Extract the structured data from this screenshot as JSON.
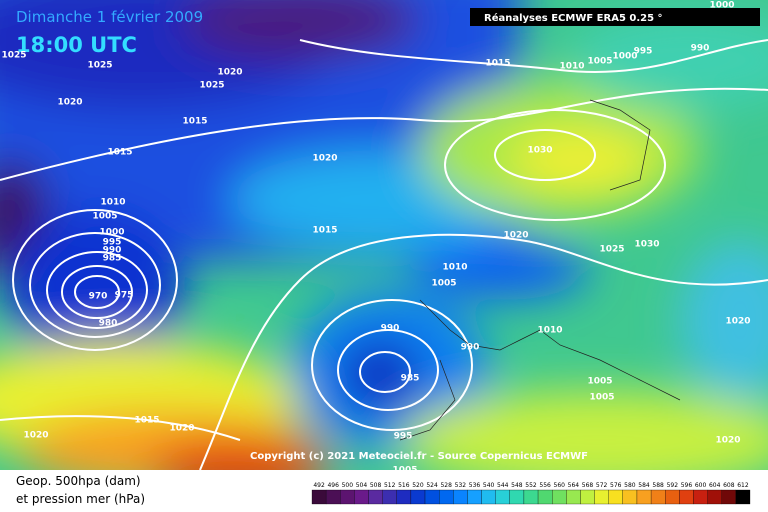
{
  "header": {
    "title": "Dimanche 1 février 2009",
    "time": "18:00 UTC",
    "source": "Réanalyses ECMWF ERA5 0.25 °"
  },
  "copyright": "Copyright (c) 2021 Meteociel.fr - Source Copernicus ECMWF",
  "legend": {
    "line1": "Geop. 500hpa (dam)",
    "line2": "et pression mer (hPa)"
  },
  "scale": {
    "labels": [
      492,
      496,
      500,
      504,
      508,
      512,
      516,
      520,
      524,
      528,
      532,
      536,
      540,
      544,
      548,
      552,
      556,
      560,
      564,
      568,
      572,
      576,
      580,
      584,
      588,
      592,
      596,
      600,
      604,
      608,
      612
    ],
    "colors": [
      "#3a0a3a",
      "#4b0f55",
      "#5c1470",
      "#6a1a8a",
      "#5a2aa0",
      "#3c2eb0",
      "#1e2cc0",
      "#0a3ad0",
      "#0050e0",
      "#0068f0",
      "#0a84ff",
      "#16a0ff",
      "#20bcf0",
      "#28d0d8",
      "#30d8b0",
      "#3cd890",
      "#50d870",
      "#70e060",
      "#98e850",
      "#c0f040",
      "#e8f030",
      "#f8e020",
      "#f8c020",
      "#f8a020",
      "#f08018",
      "#e86010",
      "#e04010",
      "#c82010",
      "#a01008",
      "#700808",
      "#000000"
    ]
  },
  "isobar_labels": [
    "1025",
    "1025",
    "1020",
    "1025",
    "1020",
    "1015",
    "1015",
    "1020",
    "1010",
    "1005",
    "1000",
    "995",
    "990",
    "985",
    "970",
    "975",
    "980",
    "1015",
    "1015",
    "1010",
    "1005",
    "1000",
    "995",
    "990",
    "1000",
    "1030",
    "1020",
    "1025",
    "1030",
    "1010",
    "1005",
    "990",
    "990",
    "1010",
    "985",
    "1005",
    "1005",
    "1020",
    "1015",
    "1020",
    "1020",
    "995",
    "1005",
    "1020"
  ]
}
